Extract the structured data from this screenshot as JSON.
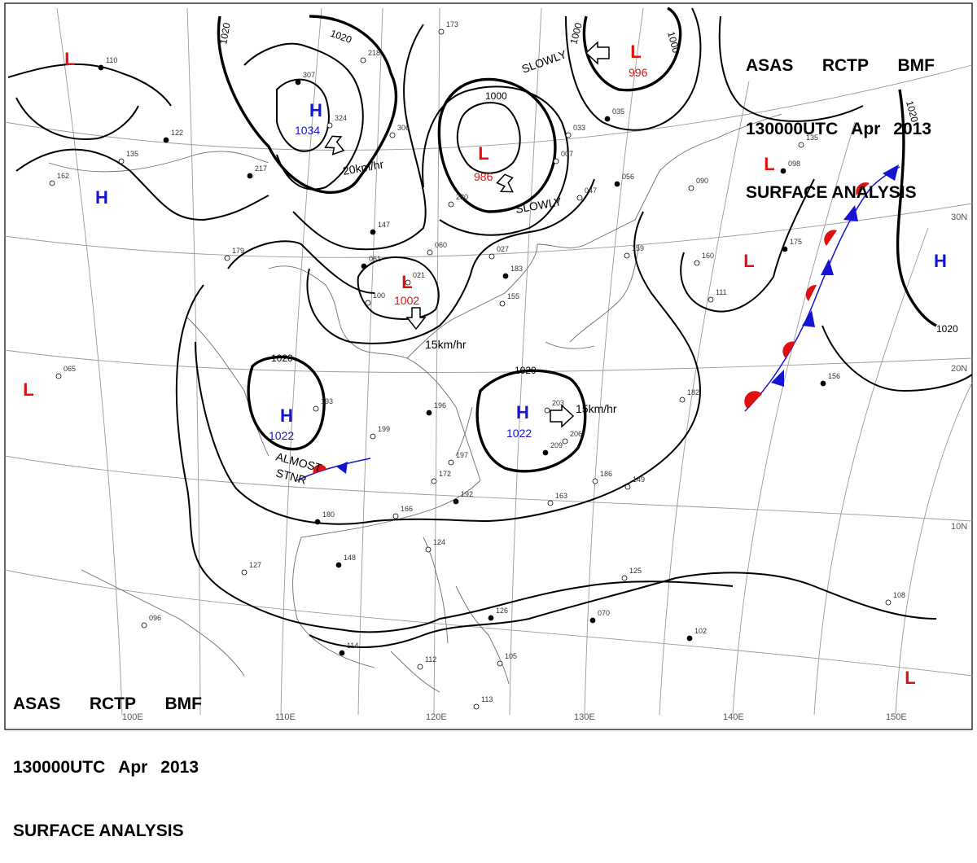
{
  "header": {
    "line1": [
      "ASAS",
      "RCTP",
      "BMF"
    ],
    "line2": [
      "130000UTC",
      "Apr",
      "2013"
    ],
    "line3": "SURFACE ANALYSIS"
  },
  "pressure_systems": [
    {
      "type": "H",
      "value": "1034",
      "name": "high-mongolia"
    },
    {
      "type": "L",
      "value": "986",
      "name": "low-manchuria"
    },
    {
      "type": "L",
      "value": "996",
      "name": "low-okhotsk"
    },
    {
      "type": "L",
      "value": "1002",
      "name": "low-yellow-sea"
    },
    {
      "type": "H",
      "value": "1022",
      "name": "high-south-china"
    },
    {
      "type": "H",
      "value": "1022",
      "name": "high-philippine-sea"
    },
    {
      "type": "H",
      "value": "",
      "name": "high-west"
    },
    {
      "type": "H",
      "value": "",
      "name": "high-east-pacific"
    },
    {
      "type": "L",
      "value": "",
      "name": "low-far-nw"
    },
    {
      "type": "L",
      "value": "",
      "name": "low-far-west"
    },
    {
      "type": "L",
      "value": "",
      "name": "low-pacific-1"
    },
    {
      "type": "L",
      "value": "",
      "name": "low-pacific-2"
    },
    {
      "type": "L",
      "value": "",
      "name": "low-pacific-se"
    }
  ],
  "movements": {
    "m1": "20km/hr",
    "m2": "SLOWLY",
    "m3": "SLOWLY",
    "m4": "15km/hr",
    "m5": "15km/hr",
    "m6a": "ALMOST",
    "m6b": "STNR"
  },
  "isobar_labels": [
    "1020",
    "1020",
    "1000",
    "1000",
    "1000",
    "1020",
    "1020",
    "1020",
    "1020"
  ],
  "longitude_labels": [
    "100E",
    "110E",
    "120E",
    "130E",
    "140E",
    "150E"
  ],
  "latitude_labels": [
    "30N",
    "20N",
    "10N"
  ],
  "stations": [
    "110",
    "173",
    "218",
    "307",
    "324",
    "306",
    "217",
    "135",
    "162",
    "122",
    "065",
    "179",
    "147",
    "060",
    "027",
    "061",
    "021",
    "100",
    "183",
    "155",
    "193",
    "196",
    "199",
    "197",
    "180",
    "166",
    "172",
    "192",
    "163",
    "186",
    "148",
    "127",
    "096",
    "114",
    "112",
    "124",
    "126",
    "105",
    "113",
    "070",
    "125",
    "182",
    "175",
    "160",
    "111",
    "098",
    "135",
    "033",
    "035",
    "007",
    "047",
    "056",
    "090",
    "159",
    "156",
    "149",
    "108",
    "102",
    "203",
    "206",
    "209",
    "230"
  ],
  "colors": {
    "high": "#1414d2",
    "low": "#e01010",
    "cold_front": "#1414d2",
    "warm_front": "#e01010"
  }
}
